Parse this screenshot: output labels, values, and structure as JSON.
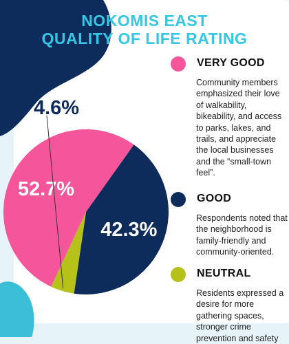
{
  "title": {
    "line1": "NOKOMIS EAST",
    "line2": "QUALITY OF LIFE RATING"
  },
  "colors": {
    "title": "#35c7e3",
    "navy_blob": "#0d2c5c",
    "cyan_blob": "#3bbfd8",
    "panel": "#ffffff",
    "page_bg": "#e6f3f8"
  },
  "chart_data": {
    "type": "pie",
    "units": "%",
    "slices": [
      {
        "label": "VERY GOOD",
        "value": 52.7,
        "display": "52.7%",
        "color": "#f5559a"
      },
      {
        "label": "GOOD",
        "value": 42.3,
        "display": "42.3%",
        "color": "#0d2c5c"
      },
      {
        "label": "NEUTRAL",
        "value": 4.6,
        "display": "4.6%",
        "color": "#b6c21a"
      }
    ]
  },
  "legend": [
    {
      "category": "VERY GOOD",
      "color": "#f5559a",
      "description": "Community members emphasized their love of walkability, bikeability, and access to parks, lakes, and trails, and appreciate the local businesses and the “small-town feel”."
    },
    {
      "category": "GOOD",
      "color": "#0d2c5c",
      "description": "Respondents noted that the neighborhood is family-friendly and community-oriented."
    },
    {
      "category": "NEUTRAL",
      "color": "#b6c21a",
      "description": "Residents expressed a desire for more gathering spaces, stronger crime prevention and safety"
    }
  ]
}
